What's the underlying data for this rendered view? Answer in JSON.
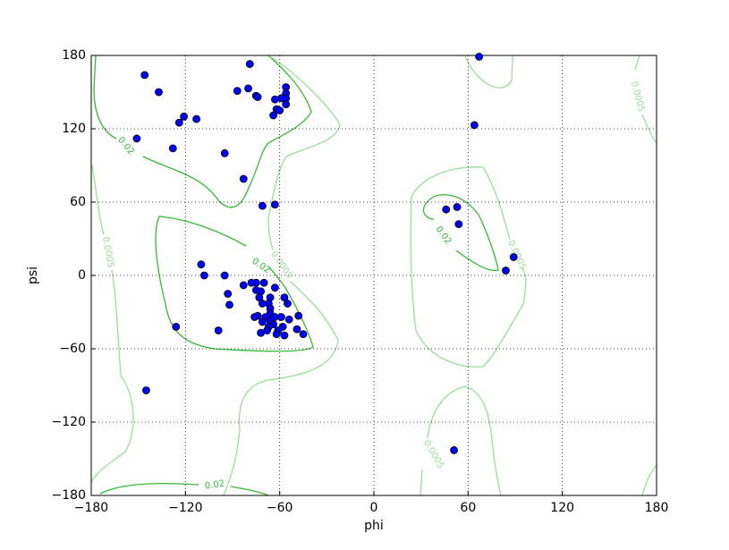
{
  "chart_data": {
    "type": "scatter",
    "x_label": "phi",
    "y_label": "psi",
    "xlim": [
      -180,
      180
    ],
    "ylim": [
      -180,
      180
    ],
    "xticks": [
      {
        "value": -180,
        "label": "−180"
      },
      {
        "value": -120,
        "label": "−120"
      },
      {
        "value": -60,
        "label": "−60"
      },
      0,
      60,
      120,
      180
    ],
    "yticks": [
      {
        "value": -180,
        "label": "−180"
      },
      {
        "value": -120,
        "label": "−120"
      },
      {
        "value": -60,
        "label": "−60"
      },
      0,
      60,
      120,
      180
    ],
    "grid": true,
    "color": "#0000ff",
    "contours": [
      {
        "level": 0.02,
        "color": "#33bb33"
      },
      {
        "level": 0.0005,
        "color": "#99e099"
      }
    ],
    "x": [
      -146,
      -137,
      -151,
      -128,
      -124,
      -121,
      -113,
      -95,
      -83,
      -79,
      -87,
      -80,
      -75,
      -74,
      -63,
      -59,
      -56,
      -56,
      -56,
      -56,
      -62,
      -60,
      -64,
      -71,
      -63,
      67,
      64,
      46,
      53,
      54,
      84,
      89,
      51,
      -145,
      -126,
      -99,
      -110,
      -108,
      -95,
      -93,
      -92,
      -83,
      -78,
      -75,
      -70,
      -75,
      -72,
      -73,
      -71,
      -66,
      -63,
      -57,
      -55,
      -67,
      -66,
      -66,
      -74,
      -76,
      -69,
      -66,
      -71,
      -63,
      -59,
      -54,
      -48,
      -64,
      -67,
      -72,
      -68,
      -61,
      -58,
      -62,
      -57,
      -49,
      -45
    ],
    "y": [
      164,
      150,
      112,
      104,
      125,
      130,
      128,
      100,
      79,
      173,
      151,
      153,
      147,
      146,
      144,
      145,
      154,
      149,
      145,
      140,
      136,
      135,
      131,
      57,
      58,
      179,
      123,
      54,
      56,
      42,
      4,
      15,
      -143,
      -94,
      -42,
      -45,
      9,
      0,
      0,
      -15,
      -24,
      -8,
      -6,
      -6,
      -6,
      -12,
      -13,
      -18,
      -23,
      -18,
      -10,
      -18,
      -23,
      -23,
      -27,
      -31,
      -33,
      -34,
      -34,
      -37,
      -38,
      -34,
      -34,
      -36,
      -33,
      -40,
      -42,
      -47,
      -45,
      -45,
      -42,
      -48,
      -49,
      -44,
      -48
    ]
  }
}
